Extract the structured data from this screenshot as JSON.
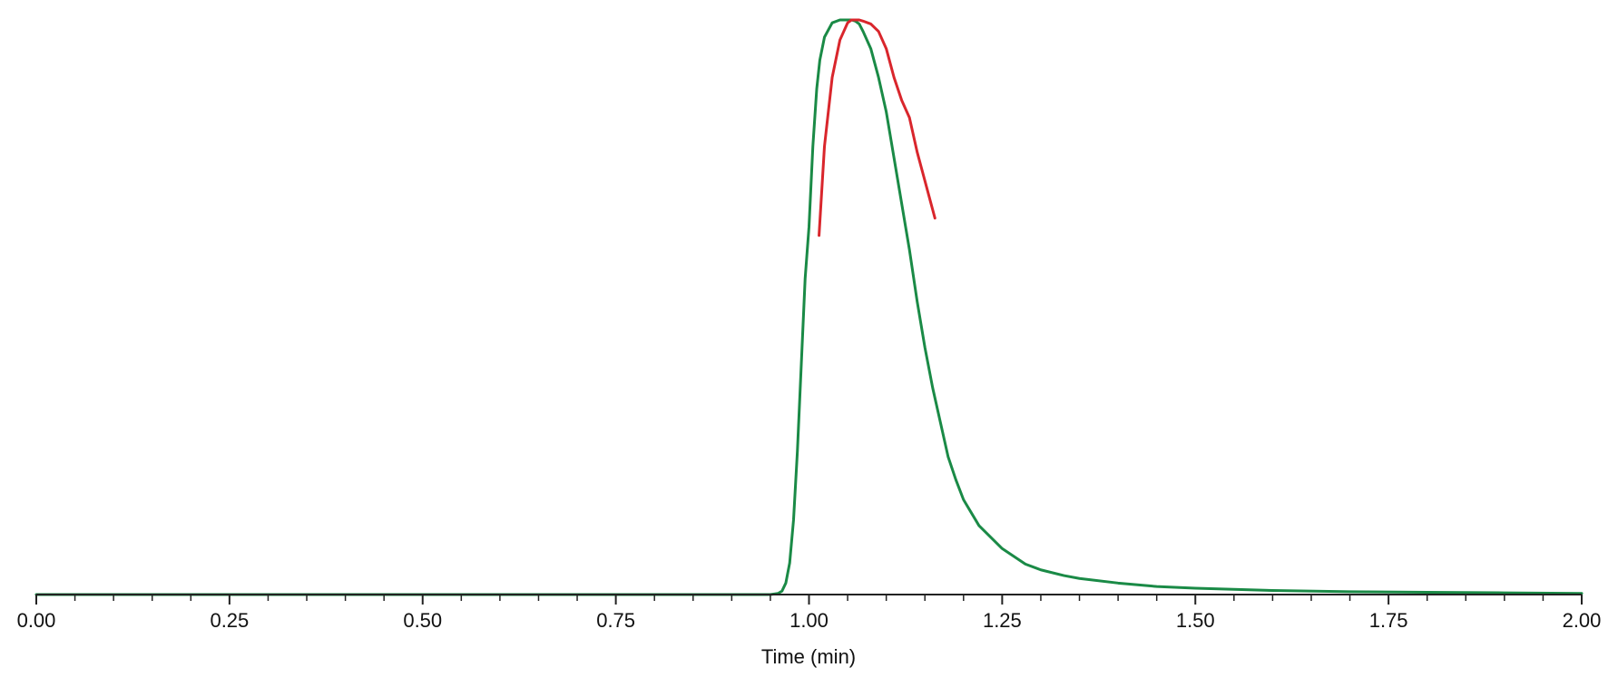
{
  "chart_data": {
    "type": "line",
    "xlabel": "Time (min)",
    "ylabel": "",
    "xlim": [
      0,
      2
    ],
    "ylim": [
      0,
      1
    ],
    "x_ticks": [
      "0.00",
      "0.25",
      "0.50",
      "0.75",
      "1.00",
      "1.25",
      "1.50",
      "1.75",
      "2.00"
    ],
    "y_axis_visible": false,
    "grid": false,
    "legend": "none",
    "colors": {
      "trace": "#1a8a46",
      "highlight": "#d9262c",
      "axis": "#222222"
    },
    "series": [
      {
        "color": "#1a8a46",
        "x": [
          0,
          0.95,
          0.96,
          0.965,
          0.97,
          0.975,
          0.98,
          0.985,
          0.99,
          0.995,
          1.0,
          1.005,
          1.01,
          1.014,
          1.02,
          1.03,
          1.04,
          1.05,
          1.055,
          1.06,
          1.065,
          1.07,
          1.08,
          1.09,
          1.1,
          1.11,
          1.12,
          1.13,
          1.14,
          1.15,
          1.16,
          1.17,
          1.18,
          1.19,
          1.2,
          1.22,
          1.25,
          1.28,
          1.3,
          1.33,
          1.35,
          1.4,
          1.45,
          1.5,
          1.55,
          1.6,
          1.7,
          1.8,
          1.9,
          2.0
        ],
        "y": [
          0,
          0,
          0.002,
          0.006,
          0.02,
          0.055,
          0.13,
          0.25,
          0.4,
          0.55,
          0.64,
          0.78,
          0.88,
          0.93,
          0.97,
          0.995,
          1.0,
          1.0,
          1.0,
          0.998,
          0.993,
          0.98,
          0.95,
          0.9,
          0.84,
          0.76,
          0.68,
          0.6,
          0.51,
          0.43,
          0.36,
          0.3,
          0.24,
          0.2,
          0.165,
          0.12,
          0.08,
          0.053,
          0.043,
          0.033,
          0.028,
          0.02,
          0.014,
          0.011,
          0.009,
          0.007,
          0.005,
          0.004,
          0.003,
          0.002
        ]
      },
      {
        "color": "#d9262c",
        "x": [
          1.013,
          1.02,
          1.03,
          1.04,
          1.05,
          1.055,
          1.06,
          1.065,
          1.07,
          1.08,
          1.09,
          1.1,
          1.11,
          1.12,
          1.13,
          1.14,
          1.15,
          1.16,
          1.163
        ],
        "y": [
          0.625,
          0.78,
          0.9,
          0.965,
          0.995,
          1.0,
          1.0,
          1.0,
          0.998,
          0.993,
          0.98,
          0.95,
          0.9,
          0.86,
          0.83,
          0.77,
          0.72,
          0.67,
          0.655
        ]
      }
    ]
  }
}
